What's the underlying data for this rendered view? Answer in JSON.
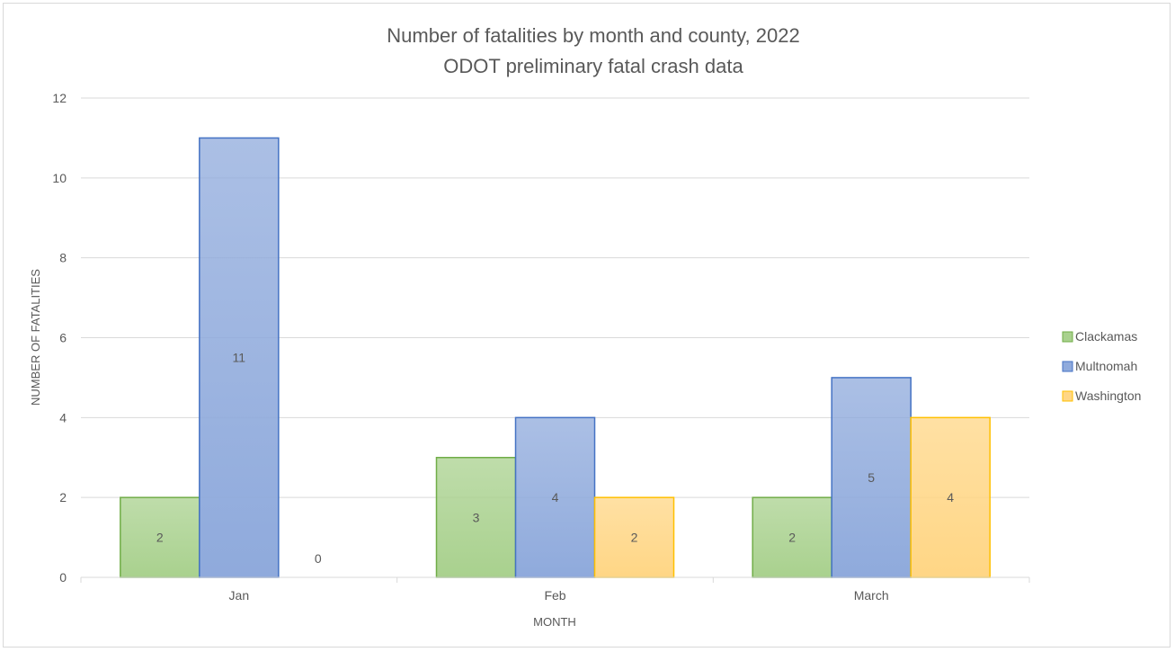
{
  "chart_data": {
    "type": "bar",
    "title": "Number of fatalities by month and county, 2022",
    "subtitle": "ODOT preliminary fatal crash data",
    "xlabel": "MONTH",
    "ylabel": "NUMBER OF FATALITIES",
    "categories": [
      "Jan",
      "Feb",
      "March"
    ],
    "ylim": [
      0,
      12
    ],
    "yticks": [
      0,
      2,
      4,
      6,
      8,
      10,
      12
    ],
    "grid": true,
    "legend_position": "right",
    "series": [
      {
        "name": "Clackamas",
        "values": [
          2,
          3,
          2
        ],
        "color": "#a9d18e",
        "stroke": "#70ad47"
      },
      {
        "name": "Multnomah",
        "values": [
          11,
          4,
          5
        ],
        "color": "#8faadc",
        "stroke": "#4472c4"
      },
      {
        "name": "Washington",
        "values": [
          0,
          2,
          4
        ],
        "color": "#ffd685",
        "stroke": "#ffc000"
      }
    ]
  }
}
